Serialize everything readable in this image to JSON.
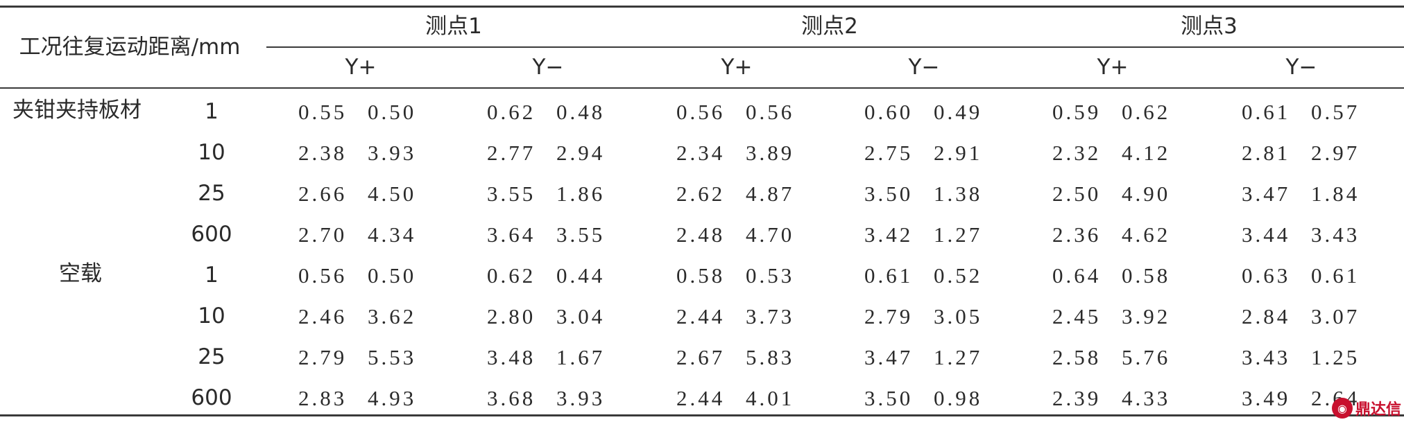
{
  "header": {
    "corner_label": "工况往复运动距离/mm",
    "groups": [
      "测点1",
      "测点2",
      "测点3"
    ],
    "directions": [
      "Y+",
      "Y−",
      "Y+",
      "Y−",
      "Y+",
      "Y−"
    ]
  },
  "conditions": [
    {
      "label": "夹钳夹持板材",
      "rows": [
        {
          "distance": "1",
          "pairs": [
            "0.55 0.50",
            "0.62 0.48",
            "0.56 0.56",
            "0.60 0.49",
            "0.59 0.62",
            "0.61 0.57"
          ]
        },
        {
          "distance": "10",
          "pairs": [
            "2.38 3.93",
            "2.77 2.94",
            "2.34 3.89",
            "2.75 2.91",
            "2.32 4.12",
            "2.81 2.97"
          ]
        },
        {
          "distance": "25",
          "pairs": [
            "2.66 4.50",
            "3.55 1.86",
            "2.62 4.87",
            "3.50 1.38",
            "2.50 4.90",
            "3.47 1.84"
          ]
        },
        {
          "distance": "600",
          "pairs": [
            "2.70 4.34",
            "3.64 3.55",
            "2.48 4.70",
            "3.42 1.27",
            "2.36 4.62",
            "3.44 3.43"
          ]
        }
      ]
    },
    {
      "label": "空载",
      "rows": [
        {
          "distance": "1",
          "pairs": [
            "0.56 0.50",
            "0.62 0.44",
            "0.58 0.53",
            "0.61 0.52",
            "0.64 0.58",
            "0.63 0.61"
          ]
        },
        {
          "distance": "10",
          "pairs": [
            "2.46 3.62",
            "2.80 3.04",
            "2.44 3.73",
            "2.79 3.05",
            "2.45 3.92",
            "2.84 3.07"
          ]
        },
        {
          "distance": "25",
          "pairs": [
            "2.79 5.53",
            "3.48 1.67",
            "2.67 5.83",
            "3.47 1.27",
            "2.58 5.76",
            "3.43 1.25"
          ]
        },
        {
          "distance": "600",
          "pairs": [
            "2.83 4.93",
            "3.68 3.93",
            "2.44 4.01",
            "3.50 0.98",
            "2.39 4.33",
            "3.49 2.64"
          ]
        }
      ]
    }
  ],
  "watermark": {
    "text": "鼎达信",
    "icon": "logo-icon"
  }
}
